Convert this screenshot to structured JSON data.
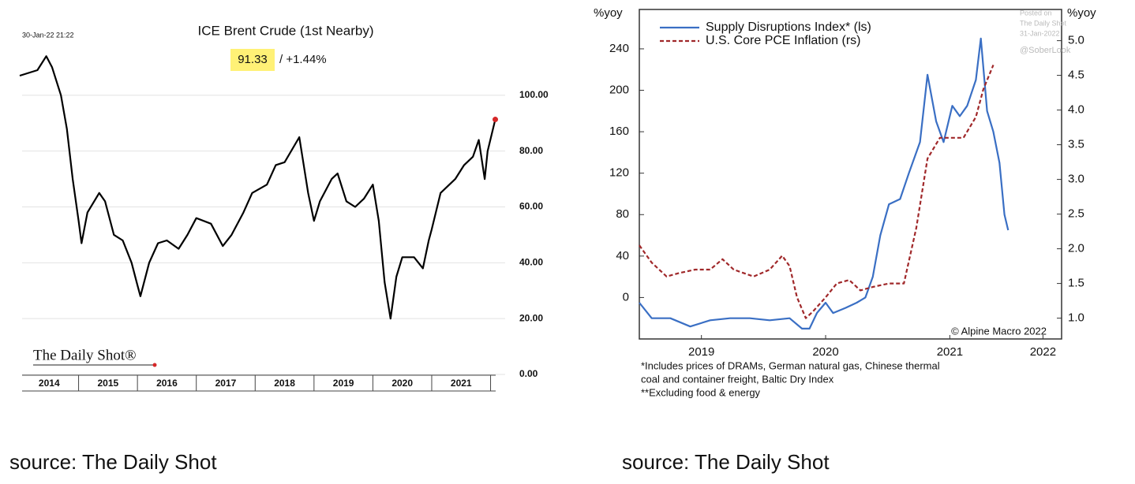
{
  "chart_data": [
    {
      "type": "line",
      "title": "ICE Brent Crude (1st Nearby)",
      "timestamp": "30-Jan-22 21:22",
      "price": 91.33,
      "change_text": "/ +1.44%",
      "logo": "The Daily Shot®",
      "color": "#000000",
      "last_point_color": "#d62728",
      "highlight_color": "#fff176",
      "grid": true,
      "x": [
        2014.0,
        2014.15,
        2014.3,
        2014.45,
        2014.55,
        2014.7,
        2014.8,
        2014.9,
        2015.0,
        2015.05,
        2015.15,
        2015.35,
        2015.45,
        2015.6,
        2015.75,
        2015.9,
        2016.0,
        2016.05,
        2016.2,
        2016.35,
        2016.5,
        2016.7,
        2016.85,
        2017.0,
        2017.25,
        2017.45,
        2017.6,
        2017.8,
        2017.95,
        2018.2,
        2018.35,
        2018.5,
        2018.75,
        2018.9,
        2019.0,
        2019.1,
        2019.3,
        2019.4,
        2019.55,
        2019.7,
        2019.85,
        2020.0,
        2020.1,
        2020.2,
        2020.3,
        2020.4,
        2020.5,
        2020.7,
        2020.85,
        2020.95,
        2021.0,
        2021.15,
        2021.4,
        2021.55,
        2021.7,
        2021.8,
        2021.9,
        2021.95,
        2022.08
      ],
      "values": [
        107,
        108,
        109,
        114,
        110,
        100,
        88,
        70,
        55,
        47,
        58,
        65,
        62,
        50,
        48,
        40,
        32,
        28,
        40,
        47,
        48,
        45,
        50,
        56,
        54,
        46,
        50,
        58,
        65,
        68,
        75,
        76,
        85,
        65,
        55,
        62,
        70,
        72,
        62,
        60,
        63,
        68,
        55,
        33,
        20,
        35,
        42,
        42,
        38,
        48,
        52,
        65,
        70,
        75,
        78,
        84,
        70,
        80,
        91.33
      ],
      "xlim": [
        2014,
        2022.1
      ],
      "xticks": [
        {
          "value": 2014.5,
          "label": "2014"
        },
        {
          "value": 2015.5,
          "label": "2015"
        },
        {
          "value": 2016.5,
          "label": "2016"
        },
        {
          "value": 2017.5,
          "label": "2017"
        },
        {
          "value": 2018.5,
          "label": "2018"
        },
        {
          "value": 2019.5,
          "label": "2019"
        },
        {
          "value": 2020.5,
          "label": "2020"
        },
        {
          "value": 2021.5,
          "label": "2021"
        }
      ],
      "ylim": [
        0,
        120
      ],
      "yticks": [
        {
          "value": 0,
          "label": "0.00"
        },
        {
          "value": 20,
          "label": "20.00"
        },
        {
          "value": 40,
          "label": "40.00"
        },
        {
          "value": 60,
          "label": "60.00"
        },
        {
          "value": 80,
          "label": "80.00"
        },
        {
          "value": 100,
          "label": "100.00"
        }
      ]
    },
    {
      "type": "line",
      "y_label": "%yoy",
      "y2_label": "%yoy",
      "copyright": "© Alpine Macro 2022",
      "watermark": [
        "Posted on",
        "The Daily Shot",
        "31-Jan-2022",
        "@SoberLook"
      ],
      "footnotes": [
        "*Includes prices of DRAMs, German natural gas, Chinese thermal",
        "coal and container freight, Baltic Dry Index",
        "**Excluding food & energy"
      ],
      "xlim": [
        2019,
        2022.4
      ],
      "xticks": [
        {
          "value": 2019.5,
          "label": "2019"
        },
        {
          "value": 2020.5,
          "label": "2020"
        },
        {
          "value": 2021.5,
          "label": "2021"
        },
        {
          "value": 2022.25,
          "label": "2022"
        }
      ],
      "ylim": [
        -40,
        278
      ],
      "yticks": [
        0,
        40,
        80,
        120,
        160,
        200,
        240
      ],
      "y2lim": [
        0.7,
        5.45
      ],
      "y2ticks": [
        {
          "value": 1,
          "label": "1.0"
        },
        1.5,
        {
          "value": 2,
          "label": "2.0"
        },
        2.5,
        {
          "value": 3,
          "label": "3.0"
        },
        3.5,
        {
          "value": 4,
          "label": "4.0"
        },
        4.5,
        {
          "value": 5,
          "label": "5.0"
        }
      ],
      "series": [
        {
          "name": "Supply Disruptions Index* (ls)",
          "color": "#3a6fc4",
          "style": "solid",
          "x": [
            2019.0,
            2019.1,
            2019.25,
            2019.41,
            2019.57,
            2019.73,
            2019.89,
            2020.05,
            2020.21,
            2020.31,
            2020.37,
            2020.43,
            2020.5,
            2020.56,
            2020.66,
            2020.75,
            2020.82,
            2020.88,
            2020.94,
            2021.01,
            2021.1,
            2021.17,
            2021.26,
            2021.32,
            2021.39,
            2021.45,
            2021.52,
            2021.58,
            2021.64,
            2021.71,
            2021.75,
            2021.8,
            2021.85,
            2021.9,
            2021.94,
            2021.97
          ],
          "values": [
            -5,
            -20,
            -20,
            -28,
            -22,
            -20,
            -20,
            -22,
            -20,
            -30,
            -30,
            -15,
            -5,
            -15,
            -10,
            -5,
            0,
            20,
            60,
            90,
            95,
            120,
            150,
            215,
            170,
            150,
            185,
            175,
            185,
            210,
            250,
            180,
            160,
            130,
            80,
            65
          ]
        },
        {
          "name": "U.S. Core PCE Inflation (rs)",
          "color": "#a0282a",
          "style": "dashed",
          "axis": "y2",
          "x": [
            2019.0,
            2019.1,
            2019.22,
            2019.32,
            2019.45,
            2019.57,
            2019.67,
            2019.76,
            2019.92,
            2020.05,
            2020.15,
            2020.21,
            2020.27,
            2020.34,
            2020.4,
            2020.5,
            2020.59,
            2020.69,
            2020.78,
            2020.88,
            2021.01,
            2021.13,
            2021.23,
            2021.32,
            2021.42,
            2021.52,
            2021.61,
            2021.71,
            2021.77,
            2021.85
          ],
          "values": [
            2.05,
            1.8,
            1.6,
            1.65,
            1.7,
            1.7,
            1.85,
            1.7,
            1.6,
            1.7,
            1.9,
            1.75,
            1.3,
            1.0,
            1.1,
            1.3,
            1.5,
            1.55,
            1.4,
            1.45,
            1.5,
            1.5,
            2.3,
            3.3,
            3.6,
            3.6,
            3.6,
            3.9,
            4.3,
            4.65
          ]
        }
      ]
    }
  ],
  "captions": [
    "source: The Daily Shot",
    "source: The Daily Shot"
  ]
}
